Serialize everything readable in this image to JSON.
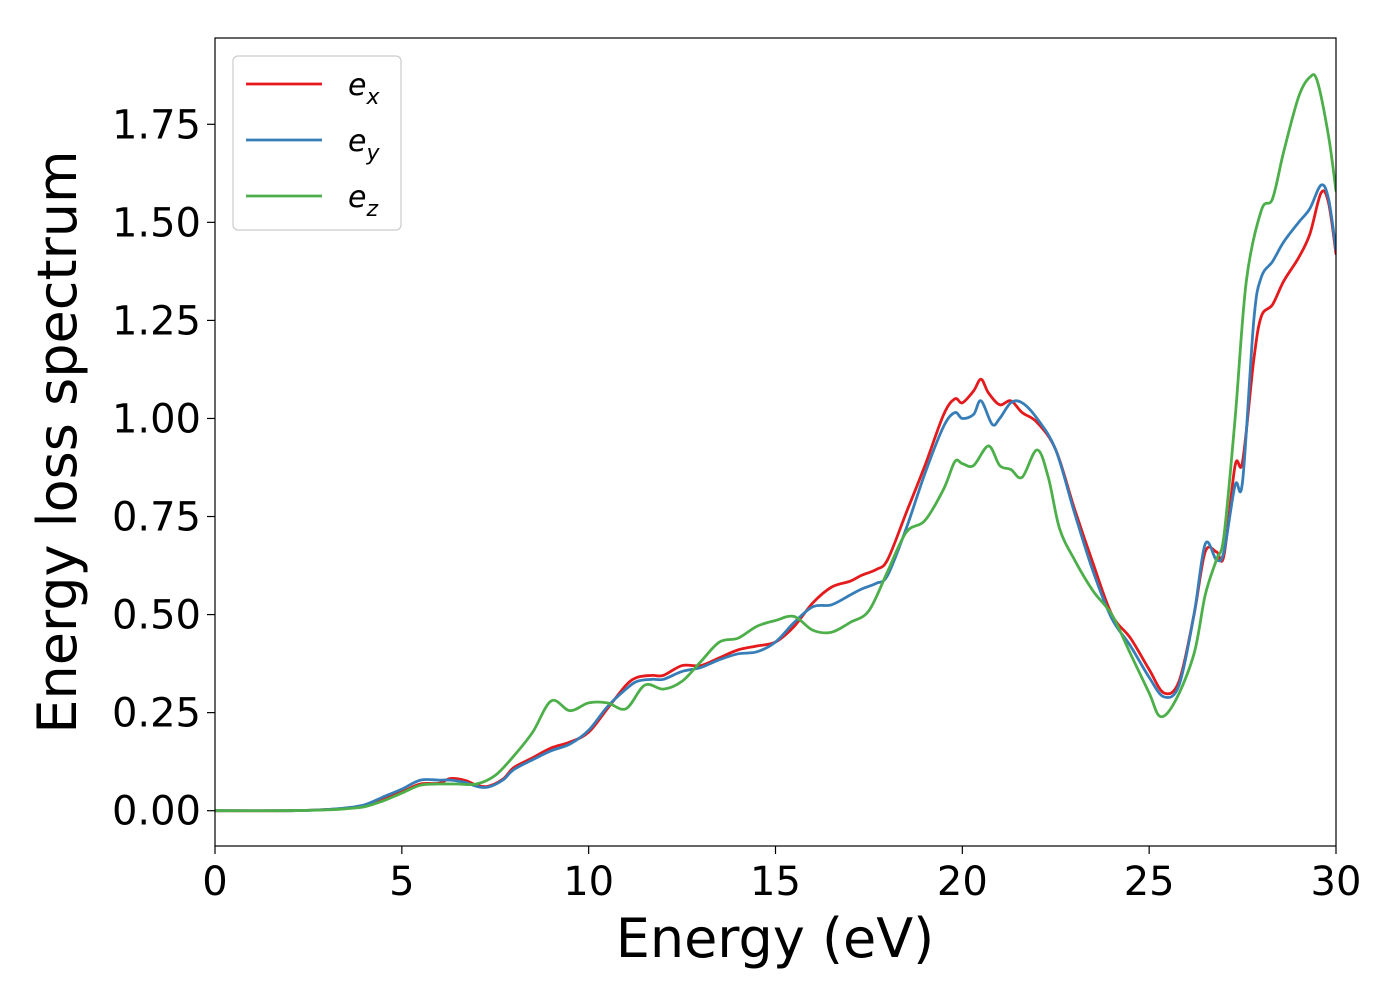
{
  "chart_data": {
    "type": "line",
    "title": "",
    "xlabel": "Energy (eV)",
    "ylabel": "Energy loss spectrum",
    "xlim": [
      0,
      30
    ],
    "ylim": [
      -0.09,
      1.97
    ],
    "xticks": [
      0,
      5,
      10,
      15,
      20,
      25,
      30
    ],
    "xtick_labels": [
      "0",
      "5",
      "10",
      "15",
      "20",
      "25",
      "30"
    ],
    "yticks": [
      0.0,
      0.25,
      0.5,
      0.75,
      1.0,
      1.25,
      1.5,
      1.75
    ],
    "ytick_labels": [
      "0.00",
      "0.25",
      "0.50",
      "0.75",
      "1.00",
      "1.25",
      "1.50",
      "1.75"
    ],
    "grid": false,
    "legend_position": "top-left",
    "series": [
      {
        "name": "e",
        "subscript": "x",
        "color": "#e41a1c",
        "points": [
          [
            0,
            0
          ],
          [
            2,
            0
          ],
          [
            3,
            0.003
          ],
          [
            3.5,
            0.006
          ],
          [
            4,
            0.012
          ],
          [
            4.5,
            0.03
          ],
          [
            5,
            0.048
          ],
          [
            5.5,
            0.068
          ],
          [
            6,
            0.07
          ],
          [
            6.3,
            0.082
          ],
          [
            6.7,
            0.077
          ],
          [
            7,
            0.065
          ],
          [
            7.3,
            0.062
          ],
          [
            7.7,
            0.08
          ],
          [
            8,
            0.11
          ],
          [
            8.5,
            0.135
          ],
          [
            9,
            0.16
          ],
          [
            9.5,
            0.175
          ],
          [
            10,
            0.2
          ],
          [
            10.5,
            0.26
          ],
          [
            11,
            0.32
          ],
          [
            11.3,
            0.34
          ],
          [
            11.7,
            0.345
          ],
          [
            12,
            0.345
          ],
          [
            12.5,
            0.37
          ],
          [
            13,
            0.37
          ],
          [
            13.5,
            0.39
          ],
          [
            14,
            0.41
          ],
          [
            14.5,
            0.42
          ],
          [
            15,
            0.43
          ],
          [
            15.5,
            0.47
          ],
          [
            16,
            0.53
          ],
          [
            16.5,
            0.57
          ],
          [
            17,
            0.585
          ],
          [
            17.3,
            0.6
          ],
          [
            17.7,
            0.615
          ],
          [
            18,
            0.64
          ],
          [
            18.5,
            0.76
          ],
          [
            19,
            0.88
          ],
          [
            19.5,
            1.01
          ],
          [
            19.8,
            1.05
          ],
          [
            20,
            1.04
          ],
          [
            20.3,
            1.07
          ],
          [
            20.5,
            1.1
          ],
          [
            20.7,
            1.065
          ],
          [
            21,
            1.035
          ],
          [
            21.3,
            1.045
          ],
          [
            21.6,
            1.015
          ],
          [
            22,
            0.99
          ],
          [
            22.5,
            0.92
          ],
          [
            23,
            0.77
          ],
          [
            23.5,
            0.63
          ],
          [
            24,
            0.5
          ],
          [
            24.5,
            0.44
          ],
          [
            25,
            0.36
          ],
          [
            25.4,
            0.3
          ],
          [
            25.8,
            0.33
          ],
          [
            26.2,
            0.5
          ],
          [
            26.5,
            0.66
          ],
          [
            26.8,
            0.66
          ],
          [
            27,
            0.65
          ],
          [
            27.3,
            0.88
          ],
          [
            27.5,
            0.89
          ],
          [
            27.8,
            1.15
          ],
          [
            28,
            1.26
          ],
          [
            28.3,
            1.29
          ],
          [
            28.6,
            1.35
          ],
          [
            29,
            1.41
          ],
          [
            29.3,
            1.47
          ],
          [
            29.6,
            1.575
          ],
          [
            29.8,
            1.55
          ],
          [
            30,
            1.42
          ]
        ]
      },
      {
        "name": "e",
        "subscript": "y",
        "color": "#377eb8",
        "points": [
          [
            0,
            0
          ],
          [
            2,
            0
          ],
          [
            3,
            0.003
          ],
          [
            3.5,
            0.007
          ],
          [
            4,
            0.015
          ],
          [
            4.5,
            0.035
          ],
          [
            5,
            0.055
          ],
          [
            5.5,
            0.078
          ],
          [
            6,
            0.078
          ],
          [
            6.3,
            0.078
          ],
          [
            6.7,
            0.072
          ],
          [
            7,
            0.062
          ],
          [
            7.3,
            0.06
          ],
          [
            7.7,
            0.078
          ],
          [
            8,
            0.105
          ],
          [
            8.5,
            0.13
          ],
          [
            9,
            0.153
          ],
          [
            9.5,
            0.17
          ],
          [
            10,
            0.205
          ],
          [
            10.5,
            0.265
          ],
          [
            11,
            0.31
          ],
          [
            11.3,
            0.33
          ],
          [
            11.7,
            0.335
          ],
          [
            12,
            0.335
          ],
          [
            12.5,
            0.355
          ],
          [
            13,
            0.365
          ],
          [
            13.5,
            0.385
          ],
          [
            14,
            0.4
          ],
          [
            14.5,
            0.405
          ],
          [
            15,
            0.43
          ],
          [
            15.5,
            0.48
          ],
          [
            16,
            0.52
          ],
          [
            16.5,
            0.525
          ],
          [
            17,
            0.55
          ],
          [
            17.3,
            0.565
          ],
          [
            17.7,
            0.58
          ],
          [
            18,
            0.6
          ],
          [
            18.5,
            0.72
          ],
          [
            19,
            0.86
          ],
          [
            19.5,
            0.98
          ],
          [
            19.8,
            1.015
          ],
          [
            20,
            1.0
          ],
          [
            20.3,
            1.01
          ],
          [
            20.5,
            1.045
          ],
          [
            20.8,
            0.985
          ],
          [
            21,
            1.0
          ],
          [
            21.3,
            1.04
          ],
          [
            21.6,
            1.04
          ],
          [
            22,
            1.0
          ],
          [
            22.5,
            0.92
          ],
          [
            23,
            0.76
          ],
          [
            23.5,
            0.61
          ],
          [
            24,
            0.49
          ],
          [
            24.5,
            0.42
          ],
          [
            25,
            0.34
          ],
          [
            25.4,
            0.29
          ],
          [
            25.8,
            0.32
          ],
          [
            26.2,
            0.5
          ],
          [
            26.5,
            0.68
          ],
          [
            26.8,
            0.64
          ],
          [
            27,
            0.66
          ],
          [
            27.3,
            0.83
          ],
          [
            27.5,
            0.84
          ],
          [
            27.8,
            1.25
          ],
          [
            28,
            1.36
          ],
          [
            28.3,
            1.4
          ],
          [
            28.6,
            1.45
          ],
          [
            29,
            1.5
          ],
          [
            29.3,
            1.535
          ],
          [
            29.6,
            1.595
          ],
          [
            29.8,
            1.56
          ],
          [
            30,
            1.43
          ]
        ]
      },
      {
        "name": "e",
        "subscript": "z",
        "color": "#4daf4a",
        "points": [
          [
            0,
            0
          ],
          [
            2,
            0
          ],
          [
            3,
            0.002
          ],
          [
            3.5,
            0.005
          ],
          [
            4,
            0.01
          ],
          [
            4.5,
            0.025
          ],
          [
            5,
            0.045
          ],
          [
            5.5,
            0.065
          ],
          [
            6,
            0.068
          ],
          [
            6.5,
            0.068
          ],
          [
            7,
            0.068
          ],
          [
            7.5,
            0.09
          ],
          [
            8,
            0.14
          ],
          [
            8.5,
            0.2
          ],
          [
            9,
            0.28
          ],
          [
            9.5,
            0.255
          ],
          [
            10,
            0.275
          ],
          [
            10.5,
            0.275
          ],
          [
            11,
            0.26
          ],
          [
            11.5,
            0.32
          ],
          [
            12,
            0.31
          ],
          [
            12.5,
            0.33
          ],
          [
            13,
            0.38
          ],
          [
            13.5,
            0.43
          ],
          [
            14,
            0.44
          ],
          [
            14.5,
            0.47
          ],
          [
            15,
            0.485
          ],
          [
            15.5,
            0.495
          ],
          [
            16,
            0.46
          ],
          [
            16.5,
            0.455
          ],
          [
            17,
            0.48
          ],
          [
            17.5,
            0.51
          ],
          [
            18,
            0.61
          ],
          [
            18.5,
            0.71
          ],
          [
            19,
            0.74
          ],
          [
            19.5,
            0.82
          ],
          [
            19.8,
            0.89
          ],
          [
            20,
            0.885
          ],
          [
            20.3,
            0.88
          ],
          [
            20.7,
            0.93
          ],
          [
            21,
            0.88
          ],
          [
            21.3,
            0.87
          ],
          [
            21.6,
            0.85
          ],
          [
            22,
            0.92
          ],
          [
            22.3,
            0.85
          ],
          [
            22.6,
            0.72
          ],
          [
            23,
            0.64
          ],
          [
            23.5,
            0.56
          ],
          [
            24,
            0.5
          ],
          [
            24.5,
            0.4
          ],
          [
            25,
            0.3
          ],
          [
            25.3,
            0.24
          ],
          [
            25.7,
            0.28
          ],
          [
            26.2,
            0.4
          ],
          [
            26.5,
            0.55
          ],
          [
            26.8,
            0.64
          ],
          [
            27,
            0.7
          ],
          [
            27.3,
            1.0
          ],
          [
            27.6,
            1.35
          ],
          [
            28,
            1.53
          ],
          [
            28.3,
            1.56
          ],
          [
            28.6,
            1.68
          ],
          [
            29,
            1.82
          ],
          [
            29.3,
            1.87
          ],
          [
            29.5,
            1.86
          ],
          [
            29.8,
            1.72
          ],
          [
            30,
            1.58
          ]
        ]
      }
    ]
  }
}
